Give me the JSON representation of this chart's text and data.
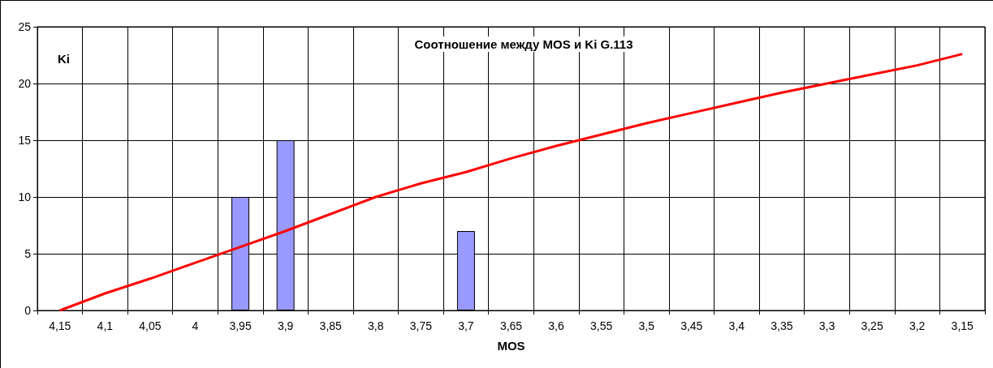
{
  "chart_data": {
    "type": "bar",
    "title": "Соотношение между MOS и Ki G.113",
    "xlabel": "MOS",
    "ylabel": "Ki",
    "categories": [
      "4,15",
      "4,1",
      "4,05",
      "4",
      "3,95",
      "3,9",
      "3,85",
      "3,8",
      "3,75",
      "3,7",
      "3,65",
      "3,6",
      "3,55",
      "3,5",
      "3,45",
      "3,4",
      "3,35",
      "3,3",
      "3,25",
      "3,2",
      "3,15"
    ],
    "series": [
      {
        "color": "#9999ff",
        "values": [
          null,
          null,
          null,
          null,
          10,
          15,
          null,
          null,
          null,
          7,
          null,
          null,
          null,
          null,
          null,
          null,
          null,
          null,
          null,
          null,
          null
        ]
      },
      {
        "type": "line",
        "color": "#ff0000",
        "values": [
          0,
          1.5,
          2.8,
          4.2,
          5.6,
          7.0,
          8.5,
          10.0,
          11.2,
          12.2,
          13.4,
          14.5,
          15.5,
          16.5,
          17.4,
          18.3,
          19.2,
          20.0,
          20.8,
          21.6,
          22.6
        ]
      }
    ],
    "ylim": [
      0,
      25
    ],
    "yticks": [
      0,
      5,
      10,
      15,
      20,
      25
    ],
    "grid": true,
    "marker": "none",
    "line_style": "solid"
  }
}
